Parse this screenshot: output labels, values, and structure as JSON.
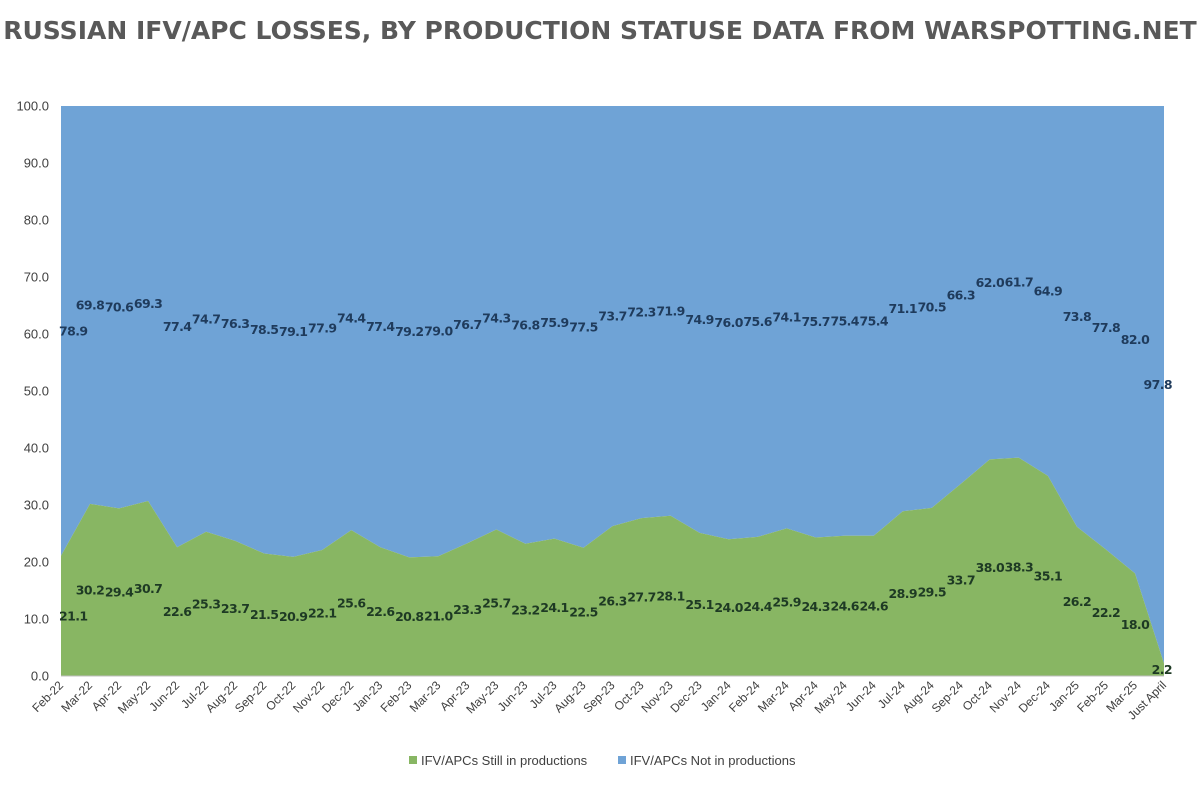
{
  "chart_data": {
    "type": "area",
    "stacked": true,
    "percent_stacked": true,
    "title": "RUSSIAN IFV/APC LOSSES, BY PRODUCTION STATUSE DATA FROM WARSPOTTING.NET",
    "categories": [
      "Feb-22",
      "Mar-22",
      "Apr-22",
      "May-22",
      "Jun-22",
      "Jul-22",
      "Aug-22",
      "Sep-22",
      "Oct-22",
      "Nov-22",
      "Dec-22",
      "Jan-23",
      "Feb-23",
      "Mar-23",
      "Apr-23",
      "May-23",
      "Jun-23",
      "Jul-23",
      "Aug-23",
      "Sep-23",
      "Oct-23",
      "Nov-23",
      "Dec-23",
      "Jan-24",
      "Feb-24",
      "Mar-24",
      "Apr-24",
      "May-24",
      "Jun-24",
      "Jul-24",
      "Aug-24",
      "Sep-24",
      "Oct-24",
      "Nov-24",
      "Dec-24",
      "Jan-25",
      "Feb-25",
      "Mar-25",
      "Just April"
    ],
    "series": [
      {
        "name": "IFV/APCs Still in productions",
        "color": "#88b663",
        "values": [
          21.1,
          30.2,
          29.4,
          30.7,
          22.6,
          25.3,
          23.7,
          21.5,
          20.9,
          22.1,
          25.6,
          22.6,
          20.8,
          21.0,
          23.3,
          25.7,
          23.2,
          24.1,
          22.5,
          26.3,
          27.7,
          28.1,
          25.1,
          24.0,
          24.4,
          25.9,
          24.3,
          24.6,
          24.6,
          28.9,
          29.5,
          33.7,
          38.0,
          38.3,
          35.1,
          26.2,
          22.2,
          18.0,
          2.2
        ]
      },
      {
        "name": "IFV/APCs Not in productions",
        "color": "#6fa3d6",
        "values": [
          78.9,
          69.8,
          70.6,
          69.3,
          77.4,
          74.7,
          76.3,
          78.5,
          79.1,
          77.9,
          74.4,
          77.4,
          79.2,
          79.0,
          76.7,
          74.3,
          76.8,
          75.9,
          77.5,
          73.7,
          72.3,
          71.9,
          74.9,
          76.0,
          75.6,
          74.1,
          75.7,
          75.4,
          75.4,
          71.1,
          70.5,
          66.3,
          62.0,
          61.7,
          64.9,
          73.8,
          77.8,
          82.0,
          97.8
        ]
      }
    ],
    "ylim": [
      0,
      100
    ],
    "yticks": [
      "0.0",
      "10.0",
      "20.0",
      "30.0",
      "40.0",
      "50.0",
      "60.0",
      "70.0",
      "80.0",
      "90.0",
      "100.0"
    ],
    "data_labels": true,
    "legend_position": "bottom",
    "grid": false
  }
}
